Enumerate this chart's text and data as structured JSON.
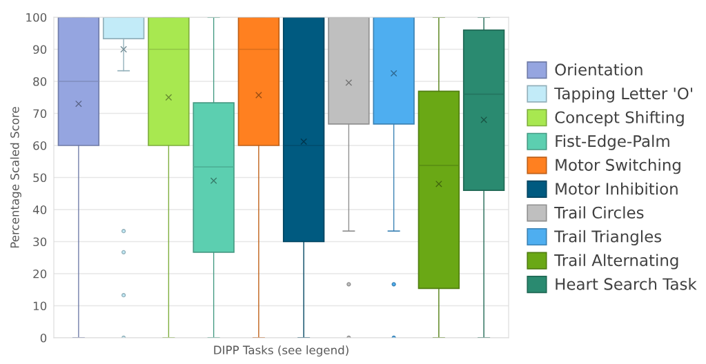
{
  "chart_data": {
    "type": "box",
    "xlabel": "DIPP Tasks (see legend)",
    "ylabel": "Percentage Scaled Score",
    "categories": [
      null,
      null,
      null,
      null,
      null,
      null,
      null,
      null,
      null,
      null
    ],
    "series": [
      {
        "name": "Orientation",
        "color": "#95a5e0",
        "boxes": [
          {
            "low": 0,
            "q1": 60,
            "median": 80,
            "q3": 100,
            "high": 100,
            "mean": 73
          },
          null,
          null,
          null,
          null,
          null,
          null,
          null,
          null,
          null
        ]
      },
      {
        "name": "Tapping Letter 'O'",
        "color": "#c2ebf8",
        "boxes": [
          null,
          {
            "low": 83.3,
            "q1": 93.3,
            "median": 100,
            "q3": 100,
            "high": 100,
            "mean": 90,
            "outliers": [
              33.3,
              26.7,
              13.3,
              0
            ]
          },
          null,
          null,
          null,
          null,
          null,
          null,
          null,
          null
        ]
      },
      {
        "name": "Concept Shifting",
        "color": "#a8e850",
        "boxes": [
          null,
          null,
          {
            "low": 0,
            "q1": 60,
            "median": 90,
            "q3": 100,
            "high": 100,
            "mean": 75
          },
          null,
          null,
          null,
          null,
          null,
          null,
          null
        ]
      },
      {
        "name": "Fist-Edge-Palm",
        "color": "#5ccfb0",
        "boxes": [
          null,
          null,
          null,
          {
            "low": 0,
            "q1": 26.7,
            "median": 53.3,
            "q3": 73.3,
            "high": 100,
            "mean": 49
          },
          null,
          null,
          null,
          null,
          null,
          null
        ]
      },
      {
        "name": "Motor Switching",
        "color": "#ff8020",
        "boxes": [
          null,
          null,
          null,
          null,
          {
            "low": 0,
            "q1": 60,
            "median": 90,
            "q3": 100,
            "high": 100,
            "mean": 75.7
          },
          null,
          null,
          null,
          null,
          null
        ]
      },
      {
        "name": "Motor Inhibition",
        "color": "#005a80",
        "boxes": [
          null,
          null,
          null,
          null,
          null,
          {
            "low": 0,
            "q1": 30,
            "median": 60,
            "q3": 100,
            "high": 100,
            "mean": 61.2
          },
          null,
          null,
          null,
          null
        ]
      },
      {
        "name": "Trail Circles",
        "color": "#bfbfbf",
        "boxes": [
          null,
          null,
          null,
          null,
          null,
          null,
          {
            "low": 33.3,
            "q1": 66.7,
            "median": 100,
            "q3": 100,
            "high": 100,
            "mean": 79.6,
            "outliers": [
              16.7,
              0
            ]
          },
          null,
          null,
          null
        ]
      },
      {
        "name": "Trail Triangles",
        "color": "#4eaef0",
        "boxes": [
          null,
          null,
          null,
          null,
          null,
          null,
          null,
          {
            "low": 33.3,
            "q1": 66.7,
            "median": 100,
            "q3": 100,
            "high": 100,
            "mean": 82.5,
            "outliers": [
              16.7,
              0
            ]
          },
          null,
          null
        ]
      },
      {
        "name": "Trail Alternating",
        "color": "#6aa815",
        "boxes": [
          null,
          null,
          null,
          null,
          null,
          null,
          null,
          null,
          {
            "low": 0,
            "q1": 15.4,
            "median": 53.8,
            "q3": 76.9,
            "high": 100,
            "mean": 48
          },
          null
        ]
      },
      {
        "name": "Heart Search Task",
        "color": "#2a8a70",
        "boxes": [
          null,
          null,
          null,
          null,
          null,
          null,
          null,
          null,
          null,
          {
            "low": 0,
            "q1": 46,
            "median": 76,
            "q3": 96,
            "high": 100,
            "mean": 68
          }
        ]
      }
    ],
    "ylim": [
      0,
      100
    ],
    "yticks": [
      0,
      10,
      20,
      30,
      40,
      50,
      60,
      70,
      80,
      90,
      100
    ],
    "grid": "y",
    "legend": "right",
    "tick_labels": "y",
    "marker": "cross"
  }
}
